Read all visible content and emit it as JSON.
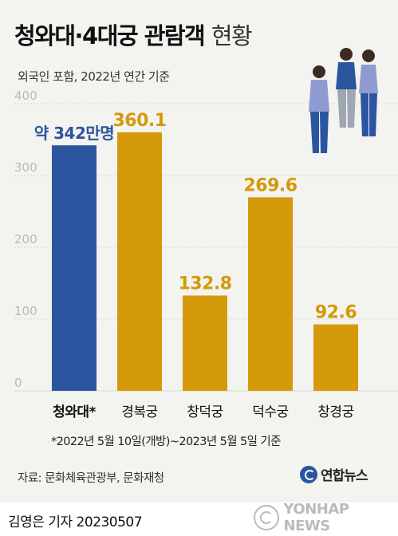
{
  "header": {
    "title": "청와대·4대궁 관람객",
    "title_suffix": "현황",
    "subtitle": "외국인 포함, 2022년 연간 기준"
  },
  "footnote": "*2022년 5월 10일(개방)~2023년 5월 5일 기준",
  "source": "자료: 문화체육관광부, 문화재청",
  "agency": "연합뉴스",
  "byline": "김영은 기자  20230507",
  "watermark": "YONHAP NEWS",
  "colors": {
    "highlight_bar": "#2b55a0",
    "bar": "#d49a0a",
    "highlight_label": "#2b55a0",
    "label": "#d49a0a",
    "axis_text": "#b9b9b9",
    "grid": "#d7d7d3"
  },
  "icons": [
    "people-illustration-icon",
    "yonhap-logo-icon"
  ],
  "chart_data": {
    "type": "bar",
    "categories": [
      "청와대*",
      "경복궁",
      "창덕궁",
      "덕수궁",
      "창경궁"
    ],
    "values": [
      342,
      360.1,
      132.8,
      269.6,
      92.6
    ],
    "data_labels": [
      "약 342만명",
      "360.1",
      "132.8",
      "269.6",
      "92.6"
    ],
    "highlight_index": 0,
    "yticks": [
      "0",
      "100",
      "200",
      "300",
      "400"
    ],
    "ylim": [
      0,
      400
    ],
    "grid": true
  }
}
